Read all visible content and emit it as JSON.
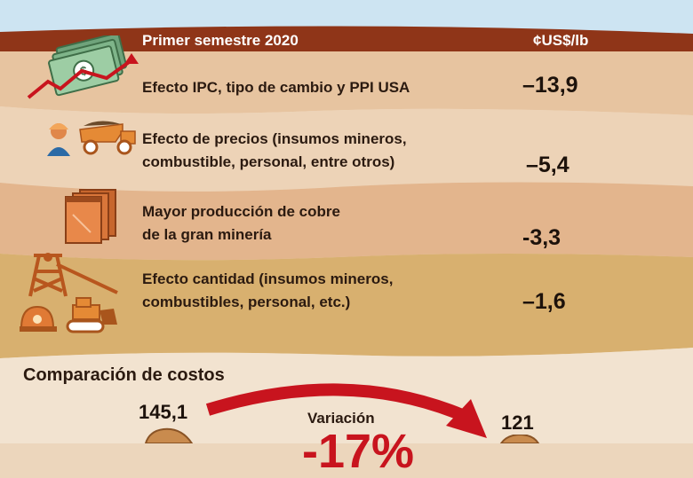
{
  "header": {
    "label": "Primer semestre 2020",
    "unit": "¢US$/lb"
  },
  "rows": [
    {
      "line1": "Efecto IPC, tipo de cambio y PPI USA",
      "line2": "",
      "value": "–13,9",
      "icon": "money-chart-icon"
    },
    {
      "line1": "Efecto de precios (insumos mineros,",
      "line2": "combustible, personal, entre otros)",
      "value": "–5,4",
      "icon": "miner-truck-icon"
    },
    {
      "line1": "Mayor producción de cobre",
      "line2": "de la gran minería",
      "value": "-3,3",
      "icon": "copper-cathodes-icon"
    },
    {
      "line1": "Efecto cantidad (insumos mineros,",
      "line2": "combustibles, personal, etc.)",
      "value": "–1,6",
      "icon": "mine-equipment-icon"
    }
  ],
  "comparison": {
    "title": "Comparación de costos",
    "before": "145,1",
    "after": "121",
    "variation_label": "Variación",
    "variation_value": "-17%"
  },
  "colors": {
    "header_band": "#8f3518",
    "sky": "#cde4f2",
    "sand_light": "#f0ddc6",
    "sand_mid": "#e3b58d",
    "sand_dark": "#d6ae6c",
    "arrow": "#c8141e"
  }
}
